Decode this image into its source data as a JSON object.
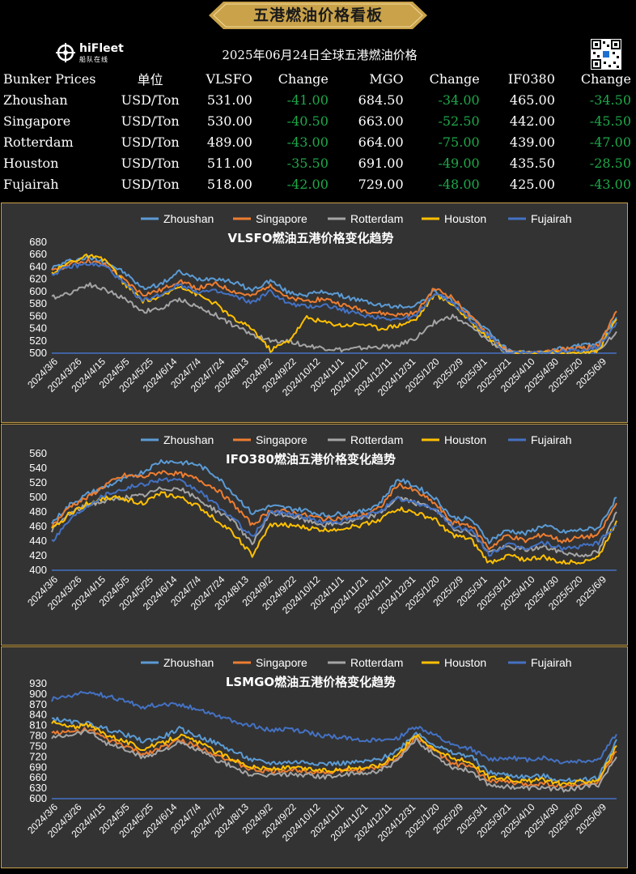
{
  "header": {
    "banner_title": "五港燃油价格看板",
    "logo_text": "hiFleet",
    "logo_sub": "船队在线",
    "date_title": "2025年06月24日全球五港燃油价格"
  },
  "table": {
    "headers": [
      "Bunker Prices",
      "单位",
      "VLSFO",
      "Change",
      "MGO",
      "Change",
      "IF0380",
      "Change"
    ],
    "rows": [
      [
        "Zhoushan",
        "USD/Ton",
        "531.00",
        "-41.00",
        "684.50",
        "-34.00",
        "465.00",
        "-34.50"
      ],
      [
        "Singapore",
        "USD/Ton",
        "530.00",
        "-40.50",
        "663.00",
        "-52.50",
        "442.00",
        "-45.50"
      ],
      [
        "Rotterdam",
        "USD/Ton",
        "489.00",
        "-43.00",
        "664.00",
        "-75.00",
        "439.00",
        "-47.00"
      ],
      [
        "Houston",
        "USD/Ton",
        "511.00",
        "-35.50",
        "691.00",
        "-49.00",
        "435.50",
        "-28.50"
      ],
      [
        "Fujairah",
        "USD/Ton",
        "518.00",
        "-42.00",
        "729.00",
        "-48.00",
        "425.00",
        "-43.00"
      ]
    ],
    "negative_color": "#1ea84a"
  },
  "colors": {
    "gold": "#c9a24a",
    "panel_bg": "#333333",
    "Zhoushan": "#5b9bd5",
    "Singapore": "#ed7d31",
    "Rotterdam": "#a5a5a5",
    "Houston": "#ffc000",
    "Fujairah": "#4472c4"
  },
  "chart_data": [
    {
      "type": "line",
      "title": "VLSFO燃油五港价格变化趋势",
      "ylim": [
        500,
        680
      ],
      "yticks": [
        500,
        520,
        540,
        560,
        580,
        600,
        620,
        640,
        660,
        680
      ],
      "x_labels": [
        "2024/3/6",
        "2024/3/26",
        "2024/4/15",
        "2024/5/5",
        "2024/5/25",
        "2024/6/14",
        "2024/7/4",
        "2024/7/24",
        "2024/8/13",
        "2024/9/2",
        "2024/9/22",
        "2024/10/12",
        "2024/11/1",
        "2024/11/21",
        "2024/12/11",
        "2024/12/31",
        "2025/1/20",
        "2025/2/9",
        "2025/3/1",
        "2025/3/21",
        "2025/4/10",
        "2025/4/30",
        "2025/5/20",
        "2025/6/9"
      ],
      "legend": [
        "Zhoushan",
        "Singapore",
        "Rotterdam",
        "Houston",
        "Fujairah"
      ],
      "legend_position": "top",
      "series": [
        {
          "name": "Zhoushan",
          "values": [
            638,
            650,
            655,
            648,
            630,
            605,
            612,
            632,
            620,
            622,
            615,
            602,
            618,
            598,
            595,
            600,
            592,
            585,
            578,
            575,
            578,
            600,
            585,
            560,
            535,
            505,
            500,
            500,
            508,
            512,
            515,
            558
          ]
        },
        {
          "name": "Singapore",
          "values": [
            632,
            645,
            650,
            642,
            618,
            595,
            602,
            618,
            605,
            612,
            600,
            592,
            612,
            588,
            585,
            588,
            578,
            570,
            565,
            562,
            565,
            605,
            590,
            558,
            530,
            502,
            500,
            500,
            506,
            508,
            512,
            568
          ]
        },
        {
          "name": "Rotterdam",
          "values": [
            590,
            598,
            612,
            602,
            588,
            568,
            572,
            588,
            575,
            562,
            545,
            530,
            520,
            520,
            512,
            508,
            505,
            508,
            510,
            512,
            525,
            550,
            560,
            542,
            520,
            500,
            500,
            500,
            500,
            500,
            505,
            535
          ]
        },
        {
          "name": "Houston",
          "values": [
            630,
            648,
            658,
            650,
            612,
            585,
            590,
            610,
            595,
            580,
            555,
            540,
            505,
            520,
            558,
            550,
            545,
            548,
            540,
            545,
            555,
            595,
            580,
            550,
            525,
            500,
            500,
            500,
            500,
            500,
            505,
            555
          ]
        },
        {
          "name": "Fujairah",
          "values": [
            628,
            640,
            645,
            640,
            612,
            585,
            595,
            612,
            600,
            600,
            592,
            582,
            600,
            580,
            575,
            578,
            570,
            562,
            558,
            555,
            560,
            598,
            582,
            552,
            528,
            500,
            500,
            500,
            502,
            505,
            510,
            550
          ]
        }
      ]
    },
    {
      "type": "line",
      "title": "IFO380燃油五港价格变化趋势",
      "ylim": [
        400,
        560
      ],
      "yticks": [
        400,
        420,
        440,
        460,
        480,
        500,
        520,
        540,
        560
      ],
      "x_labels": [
        "2024/3/6",
        "2024/3/26",
        "2024/4/15",
        "2024/5/5",
        "2024/5/25",
        "2024/6/14",
        "2024/7/4",
        "2024/7/24",
        "2024/8/13",
        "2024/9/2",
        "2024/9/22",
        "2024/10/12",
        "2024/11/1",
        "2024/11/21",
        "2024/12/11",
        "2024/12/31",
        "2025/1/20",
        "2025/2/9",
        "2025/3/1",
        "2025/3/21",
        "2025/4/10",
        "2025/4/30",
        "2025/5/20",
        "2025/6/9"
      ],
      "legend": [
        "Zhoushan",
        "Singapore",
        "Rotterdam",
        "Houston",
        "Fujairah"
      ],
      "legend_position": "top",
      "series": [
        {
          "name": "Zhoushan",
          "values": [
            465,
            490,
            505,
            515,
            525,
            535,
            550,
            548,
            545,
            530,
            505,
            478,
            488,
            485,
            482,
            475,
            478,
            480,
            492,
            525,
            515,
            500,
            472,
            470,
            440,
            455,
            450,
            462,
            452,
            455,
            458,
            500
          ]
        },
        {
          "name": "Singapore",
          "values": [
            460,
            488,
            500,
            518,
            530,
            528,
            535,
            532,
            525,
            512,
            490,
            462,
            482,
            480,
            475,
            470,
            472,
            475,
            485,
            518,
            508,
            492,
            465,
            462,
            430,
            448,
            440,
            450,
            440,
            445,
            448,
            492
          ]
        },
        {
          "name": "Rotterdam",
          "values": [
            455,
            478,
            490,
            495,
            500,
            502,
            512,
            512,
            498,
            482,
            468,
            435,
            478,
            475,
            468,
            462,
            465,
            470,
            478,
            500,
            492,
            485,
            458,
            452,
            425,
            432,
            428,
            432,
            425,
            420,
            425,
            480
          ]
        },
        {
          "name": "Houston",
          "values": [
            455,
            478,
            492,
            500,
            498,
            492,
            505,
            500,
            488,
            470,
            450,
            420,
            462,
            462,
            458,
            455,
            458,
            462,
            470,
            485,
            478,
            470,
            448,
            442,
            410,
            420,
            415,
            418,
            410,
            412,
            418,
            468
          ]
        },
        {
          "name": "Fujairah",
          "values": [
            440,
            470,
            490,
            505,
            512,
            518,
            525,
            522,
            510,
            490,
            470,
            445,
            480,
            478,
            472,
            465,
            468,
            472,
            482,
            498,
            492,
            485,
            460,
            455,
            422,
            435,
            430,
            438,
            430,
            432,
            438,
            462
          ]
        }
      ]
    },
    {
      "type": "line",
      "title": "LSMGO燃油五港价格变化趋势",
      "ylim": [
        600,
        930
      ],
      "yticks": [
        600,
        630,
        660,
        690,
        720,
        750,
        780,
        810,
        840,
        870,
        900,
        930
      ],
      "x_labels": [
        "2024/3/6",
        "2024/3/26",
        "2024/4/15",
        "2024/5/5",
        "2024/5/25",
        "2024/6/14",
        "2024/7/4",
        "2024/7/24",
        "2024/8/13",
        "2024/9/2",
        "2024/9/22",
        "2024/10/12",
        "2024/11/1",
        "2024/11/21",
        "2024/12/11",
        "2024/12/31",
        "2025/1/20",
        "2025/2/9",
        "2025/3/1",
        "2025/3/21",
        "2025/4/10",
        "2025/4/30",
        "2025/5/20",
        "2025/6/9"
      ],
      "legend": [
        "Zhoushan",
        "Singapore",
        "Rotterdam",
        "Houston",
        "Fujairah"
      ],
      "legend_position": "top",
      "series": [
        {
          "name": "Zhoushan",
          "values": [
            830,
            820,
            815,
            800,
            785,
            765,
            775,
            800,
            780,
            760,
            735,
            710,
            702,
            705,
            705,
            700,
            702,
            705,
            712,
            740,
            790,
            755,
            730,
            722,
            675,
            668,
            662,
            665,
            650,
            655,
            660,
            770
          ]
        },
        {
          "name": "Singapore",
          "values": [
            790,
            790,
            800,
            770,
            752,
            728,
            745,
            768,
            750,
            728,
            705,
            682,
            678,
            682,
            680,
            675,
            680,
            683,
            690,
            720,
            778,
            738,
            700,
            692,
            652,
            648,
            640,
            645,
            635,
            640,
            648,
            735
          ]
        },
        {
          "name": "Rotterdam",
          "values": [
            775,
            785,
            795,
            760,
            742,
            718,
            738,
            760,
            740,
            712,
            690,
            665,
            668,
            670,
            668,
            662,
            668,
            672,
            680,
            708,
            770,
            725,
            690,
            680,
            640,
            635,
            630,
            632,
            625,
            632,
            640,
            720
          ]
        },
        {
          "name": "Houston",
          "values": [
            820,
            805,
            810,
            785,
            765,
            742,
            758,
            782,
            762,
            735,
            712,
            690,
            685,
            688,
            685,
            680,
            685,
            690,
            695,
            728,
            782,
            745,
            715,
            705,
            662,
            658,
            650,
            655,
            642,
            648,
            655,
            752
          ]
        },
        {
          "name": "Fujairah",
          "values": [
            885,
            895,
            905,
            895,
            880,
            862,
            872,
            870,
            858,
            842,
            820,
            810,
            795,
            800,
            790,
            780,
            775,
            770,
            765,
            775,
            808,
            782,
            752,
            742,
            712,
            718,
            712,
            718,
            705,
            708,
            712,
            785
          ]
        }
      ]
    }
  ]
}
